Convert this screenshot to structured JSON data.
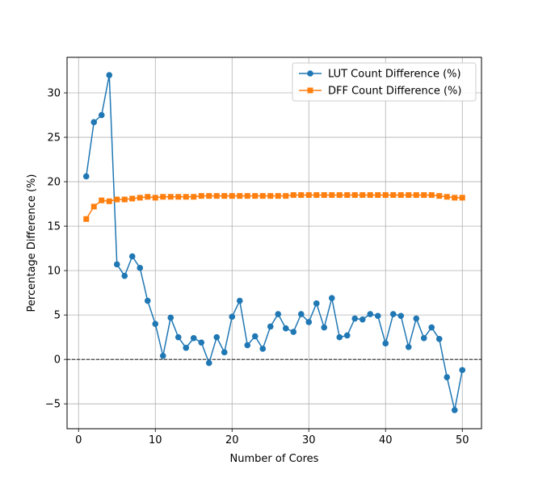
{
  "chart_data": {
    "type": "line",
    "xlabel": "Number of Cores",
    "ylabel": "Percentage Difference (%)",
    "xlim": [
      -1.5,
      52.5
    ],
    "ylim": [
      -7.8,
      34
    ],
    "xticks": [
      0,
      10,
      20,
      30,
      40,
      50
    ],
    "yticks": [
      -5,
      0,
      5,
      10,
      15,
      20,
      25,
      30
    ],
    "grid": true,
    "reference_line_y": 0,
    "legend_position": "top-right",
    "x": [
      1,
      2,
      3,
      4,
      5,
      6,
      7,
      8,
      9,
      10,
      11,
      12,
      13,
      14,
      15,
      16,
      17,
      18,
      19,
      20,
      21,
      22,
      23,
      24,
      25,
      26,
      27,
      28,
      29,
      30,
      31,
      32,
      33,
      34,
      35,
      36,
      37,
      38,
      39,
      40,
      41,
      42,
      43,
      44,
      45,
      46,
      47,
      48,
      49,
      50
    ],
    "series": [
      {
        "name": "LUT Count Difference (%)",
        "color": "#1f77b4",
        "marker": "circle",
        "values": [
          20.6,
          26.7,
          27.5,
          32.0,
          10.7,
          9.4,
          11.6,
          10.3,
          6.6,
          4.0,
          0.4,
          4.7,
          2.5,
          1.3,
          2.4,
          1.9,
          -0.4,
          2.5,
          0.8,
          4.8,
          6.6,
          1.6,
          2.6,
          1.2,
          3.7,
          5.1,
          3.5,
          3.1,
          5.1,
          4.2,
          6.3,
          3.6,
          6.9,
          2.5,
          2.7,
          4.6,
          4.5,
          5.1,
          4.9,
          1.8,
          5.1,
          4.9,
          1.4,
          4.6,
          2.4,
          3.6,
          2.3,
          -2.0,
          -5.7,
          -1.2
        ]
      },
      {
        "name": "DFF Count Difference (%)",
        "color": "#ff7f0e",
        "marker": "square",
        "values": [
          15.8,
          17.2,
          17.9,
          17.8,
          18.0,
          18.0,
          18.1,
          18.2,
          18.3,
          18.2,
          18.3,
          18.3,
          18.3,
          18.3,
          18.3,
          18.4,
          18.4,
          18.4,
          18.4,
          18.4,
          18.4,
          18.4,
          18.4,
          18.4,
          18.4,
          18.4,
          18.4,
          18.5,
          18.5,
          18.5,
          18.5,
          18.5,
          18.5,
          18.5,
          18.5,
          18.5,
          18.5,
          18.5,
          18.5,
          18.5,
          18.5,
          18.5,
          18.5,
          18.5,
          18.5,
          18.5,
          18.4,
          18.3,
          18.2,
          18.2
        ]
      }
    ]
  }
}
